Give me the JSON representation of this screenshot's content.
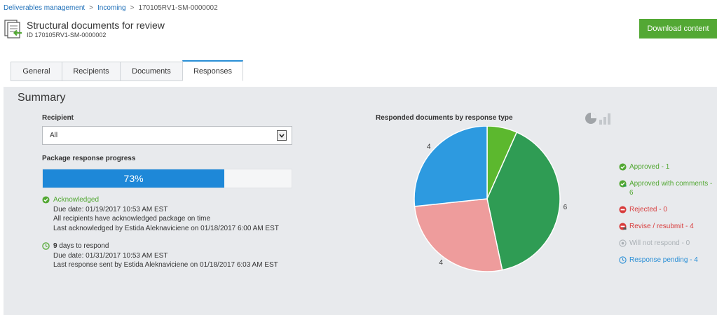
{
  "breadcrumb": {
    "items": [
      "Deliverables management",
      "Incoming",
      "170105RV1-SM-0000002"
    ]
  },
  "header": {
    "title": "Structural documents for review",
    "id_text": "ID 170105RV1-SM-0000002",
    "download_label": "Download content"
  },
  "tabs": [
    "General",
    "Recipients",
    "Documents",
    "Responses"
  ],
  "active_tab": "Responses",
  "summary": {
    "title": "Summary",
    "recipient_label": "Recipient",
    "recipient_value": "All",
    "progress_label": "Package response progress",
    "progress_percent": 73,
    "progress_text": "73%",
    "acknowledged": {
      "status": "Acknowledged",
      "due": "Due date: 01/19/2017 10:53 AM EST",
      "note": "All recipients have acknowledged package on time",
      "last": "Last acknowledged by Estida Aleknaviciene on 01/18/2017 6:00 AM EST"
    },
    "respond": {
      "days": "9",
      "days_suffix": " days to respond",
      "due": "Due date: 01/31/2017 10:53 AM EST",
      "last": "Last response sent by Estida Aleknaviciene on 01/18/2017 6:03 AM EST"
    }
  },
  "chart_data": {
    "type": "pie",
    "title": "Responded documents by response type",
    "slices": [
      {
        "label": "Approved",
        "value": 1,
        "color": "#5cb82e"
      },
      {
        "label": "Approved with comments",
        "value": 6,
        "color": "#2f9c54"
      },
      {
        "label": "Revise / resubmit",
        "value": 4,
        "color": "#ee9c9c"
      },
      {
        "label": "Response pending",
        "value": 4,
        "color": "#2d9ae0"
      }
    ]
  },
  "legend": [
    {
      "text": "Approved - 1",
      "color": "#53a834",
      "icon": "check-circle-icon"
    },
    {
      "text": "Approved with comments - 6",
      "color": "#53a834",
      "icon": "check-comment-icon"
    },
    {
      "text": "Rejected - 0",
      "color": "#d83b3b",
      "icon": "minus-circle-icon"
    },
    {
      "text": "Revise / resubmit - 4",
      "color": "#d83b3b",
      "icon": "revise-icon"
    },
    {
      "text": "Will not respond - 0",
      "color": "#aab0b5",
      "icon": "not-respond-icon"
    },
    {
      "text": "Response pending - 4",
      "color": "#2a8fd6",
      "icon": "clock-icon"
    }
  ],
  "colors": {
    "accent_blue": "#1e88d8",
    "brand_green": "#53a834",
    "link_blue": "#1e6fb8"
  }
}
